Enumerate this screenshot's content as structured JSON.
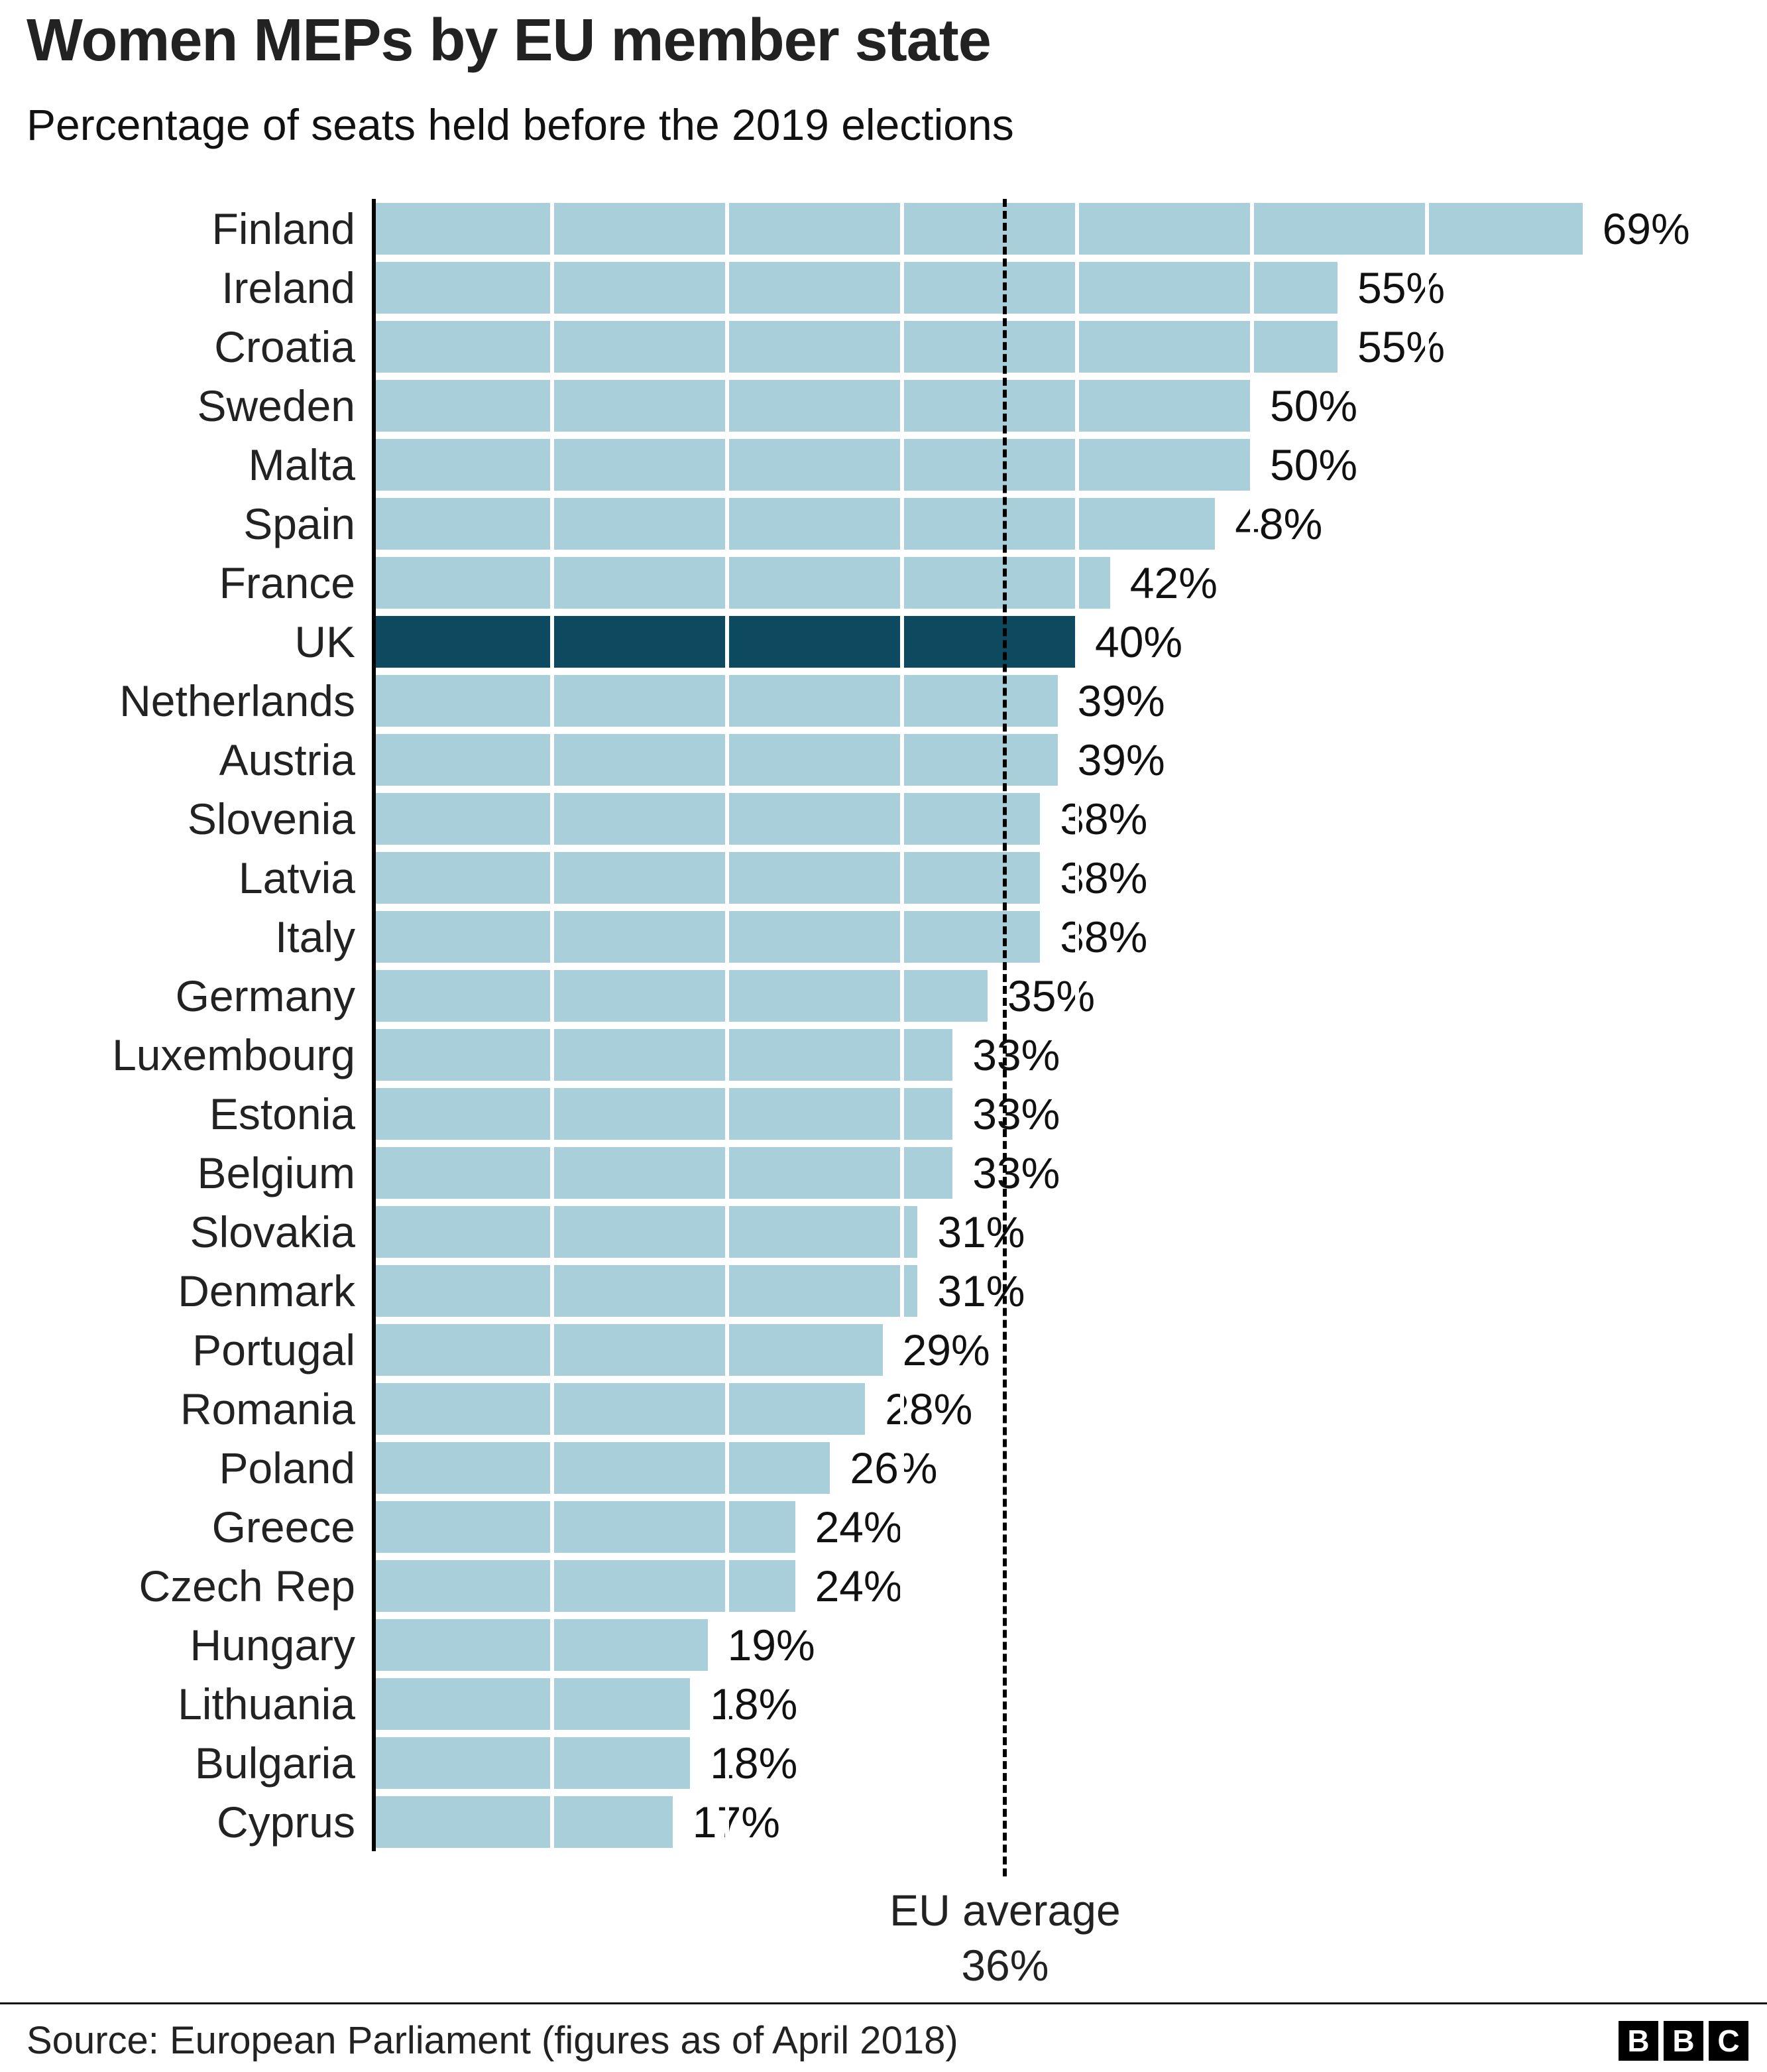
{
  "title": "Women MEPs by EU member state",
  "subtitle": "Percentage of seats held before the 2019 elections",
  "average_annotation": {
    "line1": "EU average",
    "line2": "36%"
  },
  "footer": {
    "source": "Source: European Parliament (figures as of April 2018)",
    "logo_letters": [
      "B",
      "B",
      "C"
    ]
  },
  "colors": {
    "bar": "#a9cfda",
    "highlight_bar": "#0d4a5f",
    "axis": "#000000",
    "gridline": "#ffffff",
    "text": "#222222"
  },
  "chart_data": {
    "type": "bar",
    "orientation": "horizontal",
    "title": "Women MEPs by EU member state",
    "subtitle": "Percentage of seats held before the 2019 elections",
    "xlabel": "Percentage of seats held",
    "ylabel": "EU member state",
    "xlim": [
      0,
      100
    ],
    "gridline_interval": 10,
    "grid": "white vertical lines over bars every 10%",
    "legend_position": "none",
    "highlight_category": "UK",
    "average": {
      "value": 36,
      "label": "EU average 36%"
    },
    "categories": [
      "Finland",
      "Ireland",
      "Croatia",
      "Sweden",
      "Malta",
      "Spain",
      "France",
      "UK",
      "Netherlands",
      "Austria",
      "Slovenia",
      "Latvia",
      "Italy",
      "Germany",
      "Luxembourg",
      "Estonia",
      "Belgium",
      "Slovakia",
      "Denmark",
      "Portugal",
      "Romania",
      "Poland",
      "Greece",
      "Czech Rep",
      "Hungary",
      "Lithuania",
      "Bulgaria",
      "Cyprus"
    ],
    "values": [
      69,
      55,
      55,
      50,
      50,
      48,
      42,
      40,
      39,
      39,
      38,
      38,
      38,
      35,
      33,
      33,
      33,
      31,
      31,
      29,
      28,
      26,
      24,
      24,
      19,
      18,
      18,
      17
    ],
    "value_labels": [
      "69%",
      "55%",
      "55%",
      "50%",
      "50%",
      "48%",
      "42%",
      "40%",
      "39%",
      "39%",
      "38%",
      "38%",
      "38%",
      "35%",
      "33%",
      "33%",
      "33%",
      "31%",
      "31%",
      "29%",
      "28%",
      "26%",
      "24%",
      "24%",
      "19%",
      "18%",
      "18%",
      "17%"
    ]
  }
}
